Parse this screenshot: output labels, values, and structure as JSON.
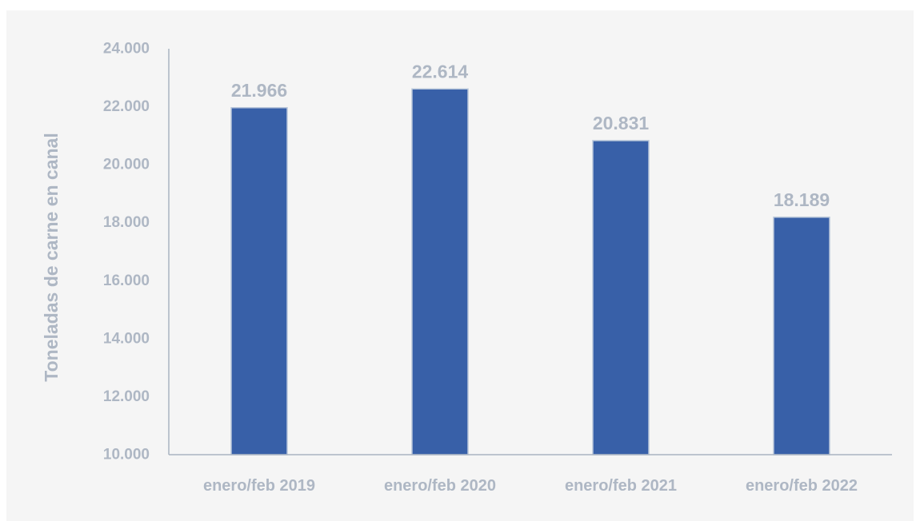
{
  "colors": {
    "bar": "#3860a8",
    "bar_edge": "#b8c6da",
    "text": "#aeb7c4",
    "axis": "#aab4c2",
    "background": "#f5f5f5"
  },
  "chart_data": {
    "type": "bar",
    "title": "",
    "xlabel": "",
    "ylabel": "Toneladas de carne en canal",
    "categories": [
      "enero/feb 2019",
      "enero/feb 2020",
      "enero/feb 2021",
      "enero/feb 2022"
    ],
    "values": [
      21966,
      22614,
      20831,
      18189
    ],
    "value_labels": [
      "21.966",
      "22.614",
      "20.831",
      "18.189"
    ],
    "ylim": [
      10000,
      24000
    ],
    "yticks": [
      10000,
      12000,
      14000,
      16000,
      18000,
      20000,
      22000,
      24000
    ],
    "ytick_labels": [
      "10.000",
      "12.000",
      "14.000",
      "16.000",
      "18.000",
      "20.000",
      "22.000",
      "24.000"
    ],
    "grid": false,
    "legend": "none"
  }
}
